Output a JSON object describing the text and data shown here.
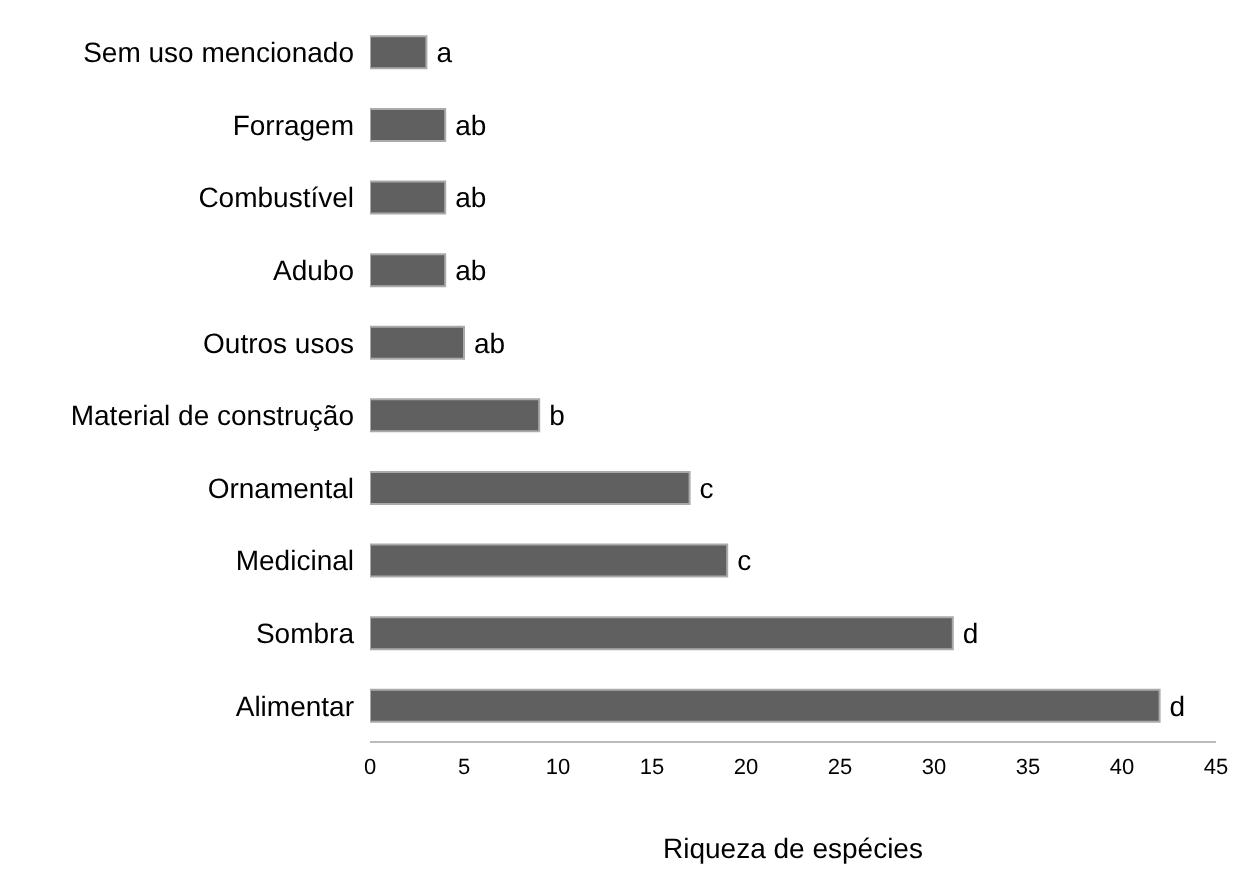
{
  "chart_data": {
    "type": "bar",
    "orientation": "horizontal",
    "xlabel": "Riqueza de espécies",
    "categories": [
      "Sem uso mencionado",
      "Forragem",
      "Combustível",
      "Adubo",
      "Outros usos",
      "Material de construção",
      "Ornamental",
      "Medicinal",
      "Sombra",
      "Alimentar"
    ],
    "values": [
      3,
      4,
      4,
      4,
      5,
      9,
      17,
      19,
      31,
      42
    ],
    "value_labels": [
      "a",
      "ab",
      "ab",
      "ab",
      "ab",
      "b",
      "c",
      "c",
      "d",
      "d"
    ],
    "color": "#606060",
    "xlim": [
      0,
      45
    ],
    "xticks": [
      0,
      5,
      10,
      15,
      20,
      25,
      30,
      35,
      40,
      45
    ],
    "grid": false
  }
}
